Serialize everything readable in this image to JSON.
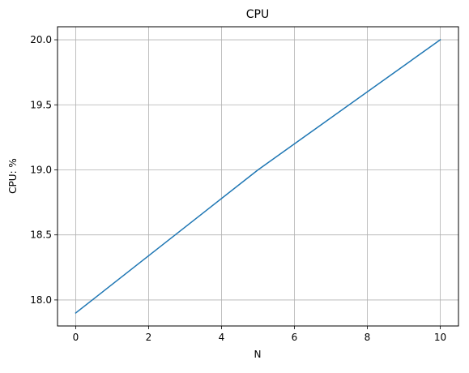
{
  "chart_data": {
    "type": "line",
    "title": "CPU",
    "xlabel": "N",
    "ylabel": "CPU: %",
    "x": [
      0,
      5,
      10
    ],
    "series": [
      {
        "values": [
          17.9,
          19.0,
          20.0
        ]
      }
    ],
    "xlim": [
      -0.5,
      10.5
    ],
    "ylim": [
      17.8,
      20.1
    ],
    "xticks": [
      0,
      2,
      4,
      6,
      8,
      10
    ],
    "xtick_labels": [
      "0",
      "2",
      "4",
      "6",
      "8",
      "10"
    ],
    "yticks": [
      18.0,
      18.5,
      19.0,
      19.5,
      20.0
    ],
    "ytick_labels": [
      "18.0",
      "18.5",
      "19.0",
      "19.5",
      "20.0"
    ],
    "grid": true,
    "line_color": "#1f77b4",
    "grid_color": "#b0b0b0"
  }
}
